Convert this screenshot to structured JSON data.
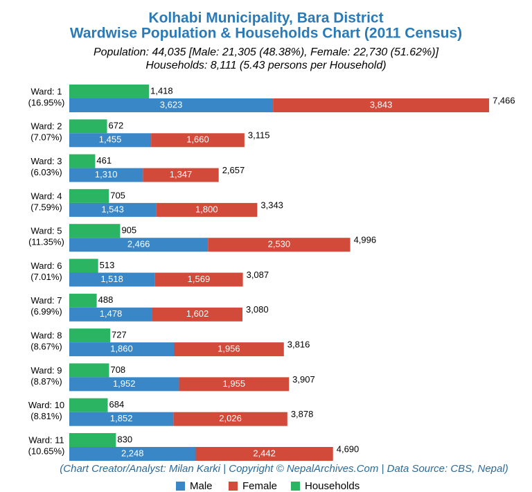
{
  "chart_data": {
    "type": "bar",
    "title": [
      "Kolhabi Municipality, Bara District",
      "Wardwise Population & Households Chart (2011 Census)"
    ],
    "subtitle": [
      "Population: 44,035 [Male: 21,305 (48.38%), Female: 22,730 (51.62%)]",
      "Households: 8,111 (5.43 persons per Household)"
    ],
    "footer": "(Chart Creator/Analyst: Milan Karki | Copyright © NepalArchives.Com | Data Source: CBS, Nepal)",
    "categories": [
      [
        "Ward: 1",
        "(16.95%)"
      ],
      [
        "Ward: 2",
        "(7.07%)"
      ],
      [
        "Ward: 3",
        "(6.03%)"
      ],
      [
        "Ward: 4",
        "(7.59%)"
      ],
      [
        "Ward: 5",
        "(11.35%)"
      ],
      [
        "Ward: 6",
        "(7.01%)"
      ],
      [
        "Ward: 7",
        "(6.99%)"
      ],
      [
        "Ward: 8",
        "(8.67%)"
      ],
      [
        "Ward: 9",
        "(8.87%)"
      ],
      [
        "Ward: 10",
        "(8.81%)"
      ],
      [
        "Ward: 11",
        "(10.65%)"
      ]
    ],
    "series": [
      {
        "name": "Male",
        "color": "#3a87c8",
        "values": [
          3623,
          1455,
          1310,
          1543,
          2466,
          1518,
          1478,
          1860,
          1952,
          1852,
          2248
        ],
        "value_labels": [
          "3,623",
          "1,455",
          "1,310",
          "1,543",
          "2,466",
          "1,518",
          "1,478",
          "1,860",
          "1,952",
          "1,852",
          "2,248"
        ]
      },
      {
        "name": "Female",
        "color": "#d24a3a",
        "values": [
          3843,
          1660,
          1347,
          1800,
          2530,
          1569,
          1602,
          1956,
          1955,
          2026,
          2442
        ],
        "value_labels": [
          "3,843",
          "1,660",
          "1,347",
          "1,800",
          "2,530",
          "1,569",
          "1,602",
          "1,956",
          "1,955",
          "2,026",
          "2,442"
        ]
      },
      {
        "name": "Households",
        "color": "#2bb563",
        "values": [
          1418,
          672,
          461,
          705,
          905,
          513,
          488,
          727,
          708,
          684,
          830
        ],
        "value_labels": [
          "1,418",
          "672",
          "461",
          "705",
          "905",
          "513",
          "488",
          "727",
          "708",
          "684",
          "830"
        ]
      }
    ],
    "totals": {
      "values": [
        7466,
        3115,
        2657,
        3343,
        4996,
        3087,
        3080,
        3816,
        3907,
        3878,
        4690
      ],
      "value_labels": [
        "7,466",
        "3,115",
        "2,657",
        "3,343",
        "4,996",
        "3,087",
        "3,080",
        "3,816",
        "3,907",
        "3,878",
        "4,690"
      ]
    },
    "xlim": [
      0,
      8130
    ]
  }
}
